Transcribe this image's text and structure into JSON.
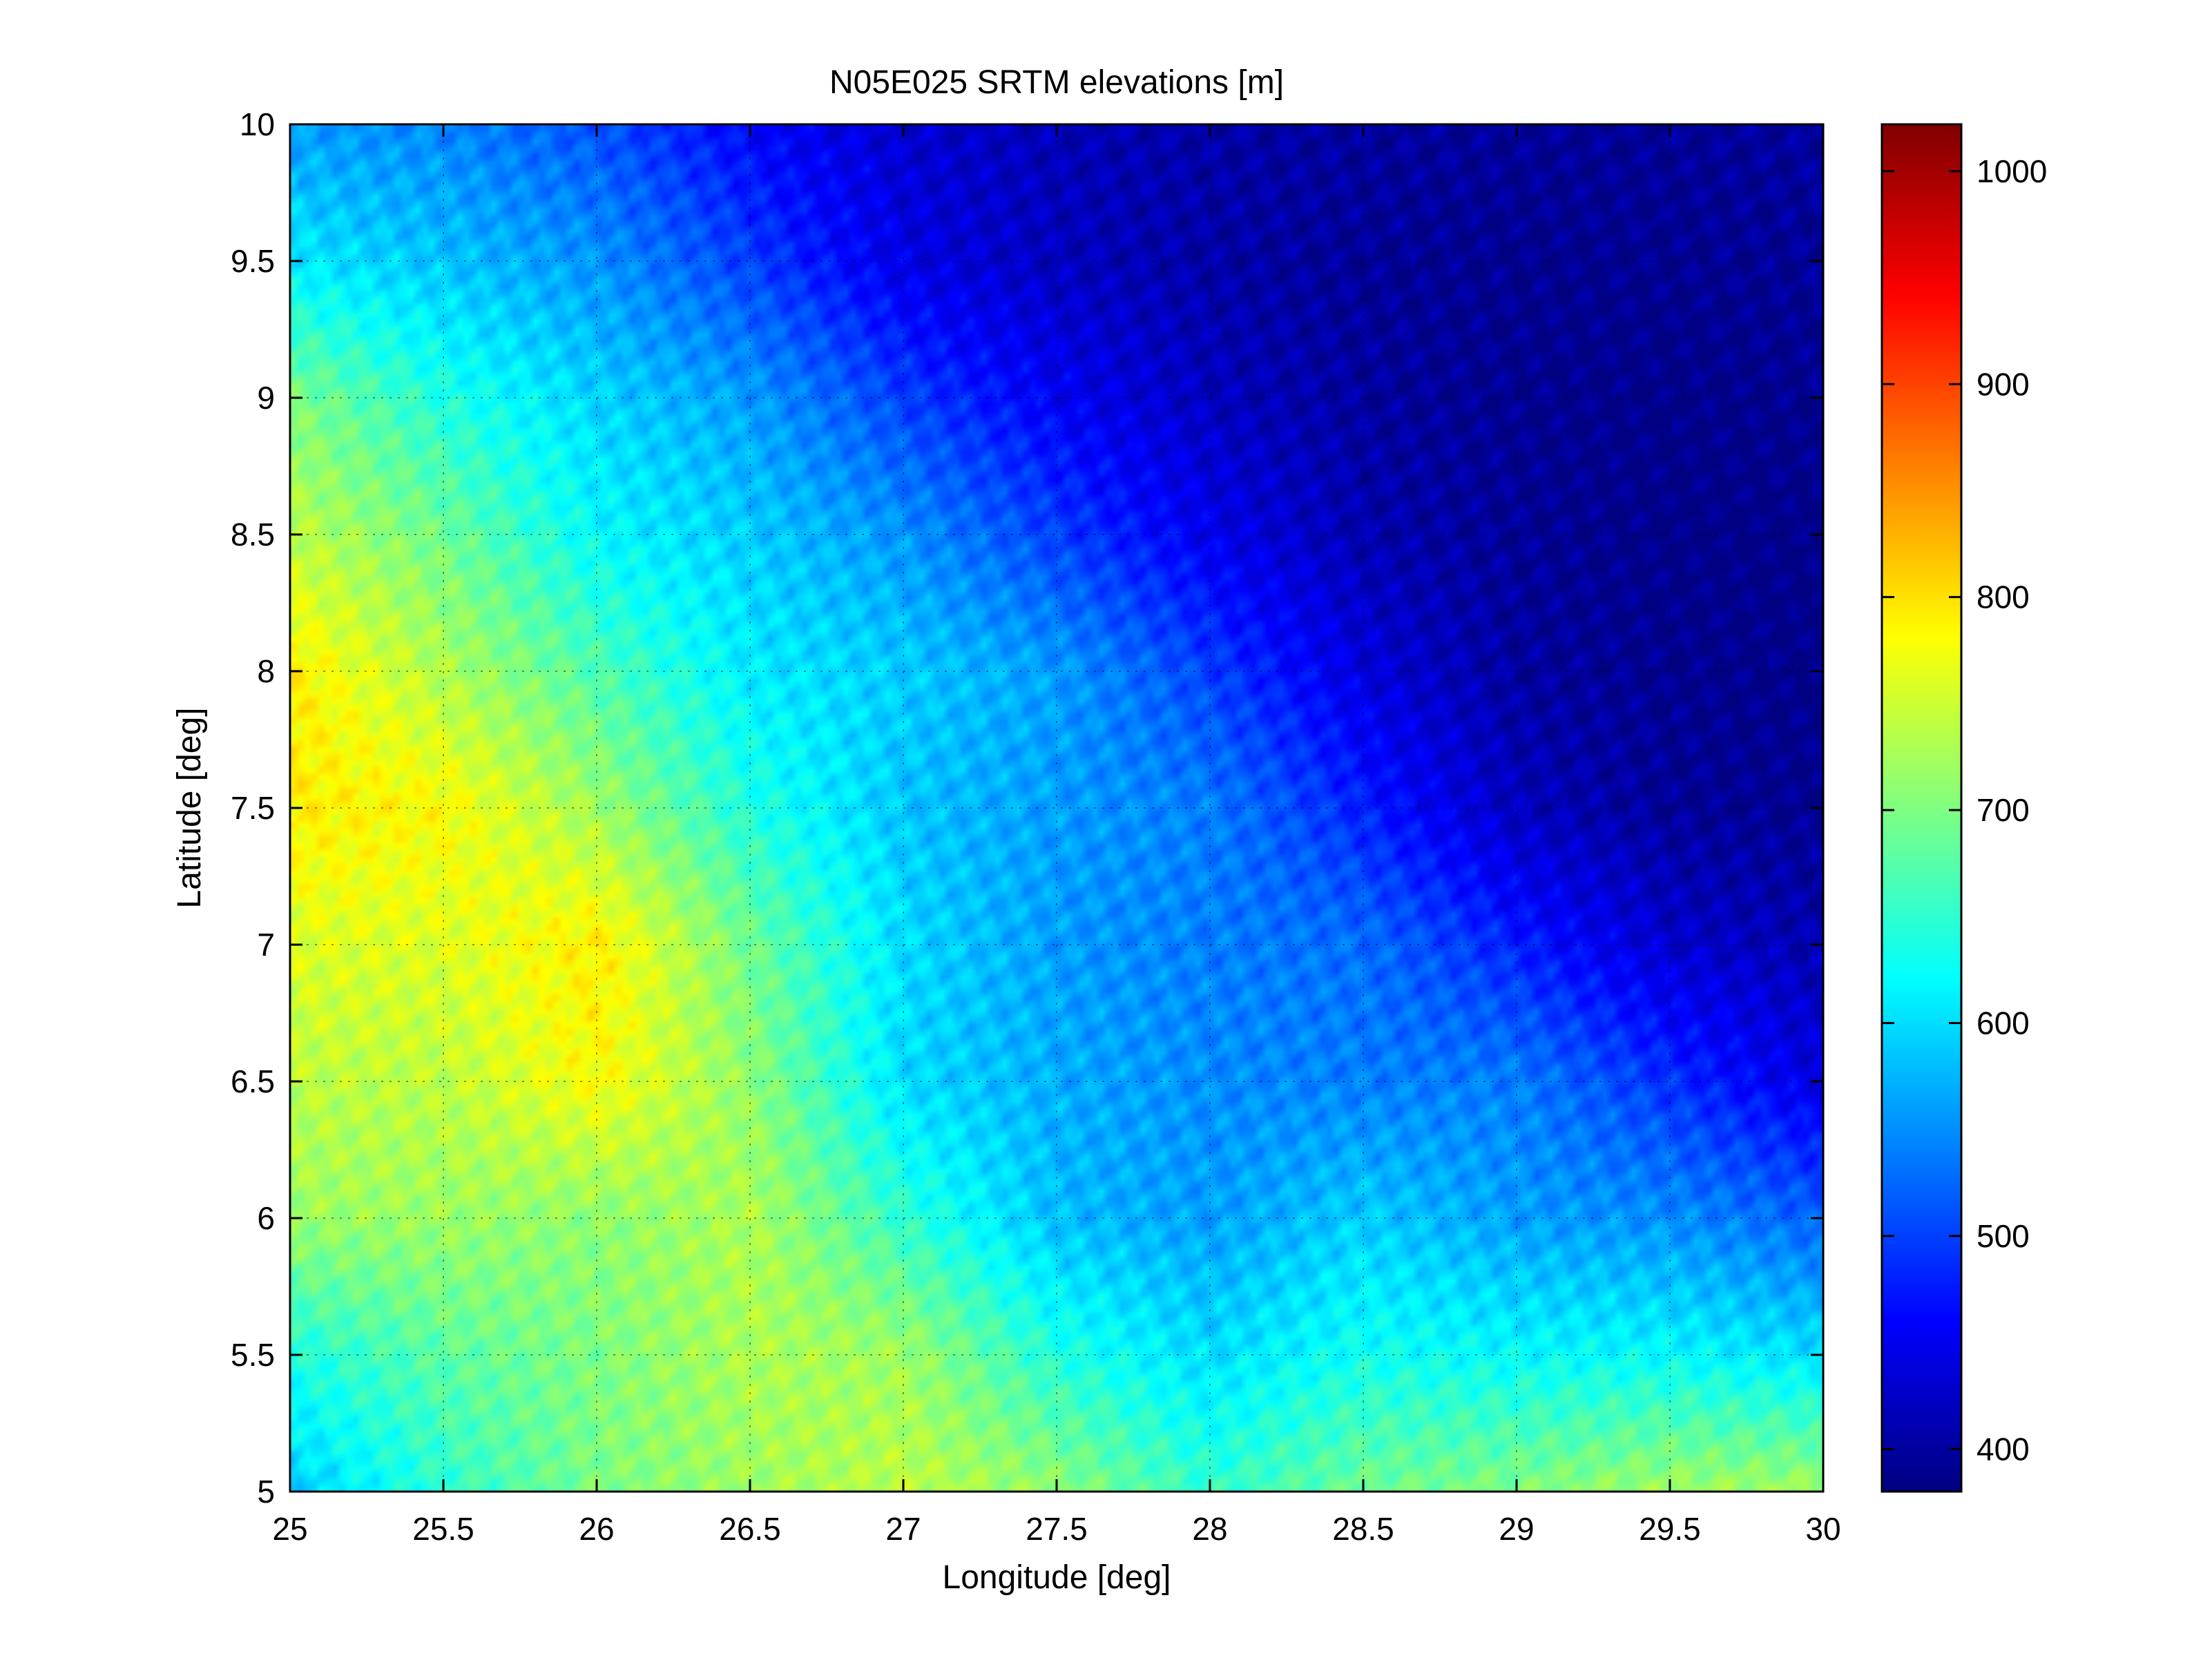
{
  "chart_data": {
    "type": "heatmap",
    "title": "N05E025 SRTM elevations [m]",
    "xlabel": "Longitude [deg]",
    "ylabel": "Latitude [deg]",
    "xlim": [
      25,
      30
    ],
    "ylim": [
      5,
      10
    ],
    "xticks": [
      "25",
      "25.5",
      "26",
      "26.5",
      "27",
      "27.5",
      "28",
      "28.5",
      "29",
      "29.5",
      "30"
    ],
    "yticks": [
      "10",
      "9.5",
      "9",
      "8.5",
      "8",
      "7.5",
      "7",
      "6.5",
      "6",
      "5.5",
      "5"
    ],
    "grid": true,
    "colormap": "jet",
    "colorbar": {
      "range": [
        380,
        1022
      ],
      "ticks": [
        "1000",
        "900",
        "800",
        "700",
        "600",
        "500",
        "400"
      ]
    },
    "surface_samples": {
      "lon": [
        25,
        25.5,
        26,
        26.5,
        27,
        27.5,
        28,
        28.5,
        29,
        29.5,
        30
      ],
      "lat": [
        10,
        9.5,
        9,
        8.5,
        8,
        7.5,
        7,
        6.5,
        6,
        5.5,
        5
      ],
      "elevation": [
        [
          560,
          545,
          510,
          460,
          430,
          415,
          405,
          400,
          395,
          395,
          400
        ],
        [
          610,
          585,
          555,
          500,
          445,
          420,
          405,
          395,
          390,
          390,
          395
        ],
        [
          700,
          640,
          595,
          560,
          500,
          455,
          420,
          400,
          390,
          385,
          390
        ],
        [
          740,
          690,
          620,
          590,
          555,
          500,
          450,
          410,
          395,
          385,
          385
        ],
        [
          790,
          730,
          670,
          610,
          590,
          560,
          500,
          440,
          400,
          390,
          385
        ],
        [
          790,
          780,
          720,
          640,
          585,
          560,
          540,
          480,
          420,
          395,
          390
        ],
        [
          760,
          760,
          790,
          690,
          600,
          560,
          540,
          530,
          480,
          430,
          410
        ],
        [
          740,
          740,
          780,
          710,
          600,
          570,
          550,
          540,
          540,
          490,
          440
        ],
        [
          720,
          720,
          710,
          730,
          650,
          580,
          560,
          590,
          560,
          550,
          520
        ],
        [
          640,
          680,
          700,
          730,
          720,
          640,
          600,
          630,
          620,
          620,
          600
        ],
        [
          590,
          650,
          700,
          720,
          740,
          710,
          650,
          690,
          700,
          720,
          720
        ]
      ]
    }
  }
}
